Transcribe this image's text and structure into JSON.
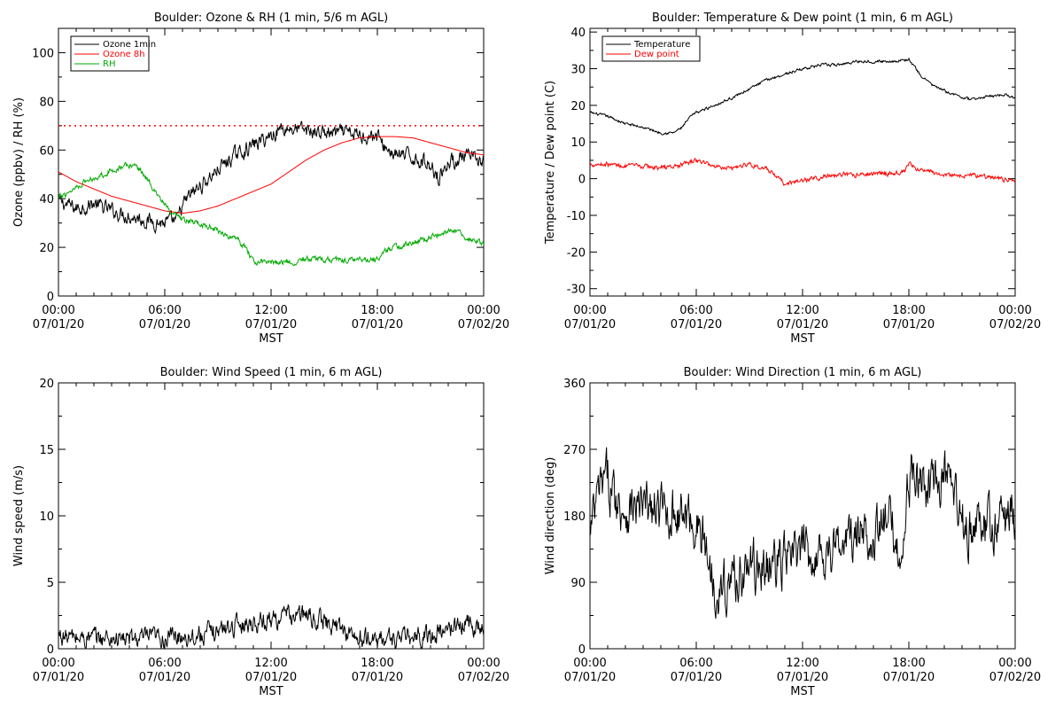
{
  "chart_data": [
    {
      "type": "line",
      "title": "Boulder: Ozone & RH (1 min, 5/6 m AGL)",
      "xlabel": "MST",
      "ylabel": "Ozone (ppbv) / RH (%)",
      "xlim": [
        0,
        24
      ],
      "ylim": [
        0,
        110
      ],
      "yticks": [
        0,
        20,
        40,
        60,
        80,
        100
      ],
      "xtick_labels": [
        [
          "00:00",
          "07/01/20"
        ],
        [
          "06:00",
          "07/01/20"
        ],
        [
          "12:00",
          "07/01/20"
        ],
        [
          "18:00",
          "07/01/20"
        ],
        [
          "00:00",
          "07/02/20"
        ]
      ],
      "legend": "top-left",
      "reference_line": {
        "y": 70,
        "color": "#ff0000",
        "style": "dotted"
      },
      "series": [
        {
          "name": "Ozone 1min",
          "color": "#000000",
          "noise": 2.5,
          "points": [
            [
              0,
              39
            ],
            [
              1,
              36
            ],
            [
              2,
              38
            ],
            [
              3,
              35
            ],
            [
              4,
              33
            ],
            [
              5,
              31
            ],
            [
              6,
              30
            ],
            [
              6.7,
              31
            ],
            [
              7,
              37
            ],
            [
              7.5,
              42
            ],
            [
              8,
              45
            ],
            [
              9,
              52
            ],
            [
              10,
              58
            ],
            [
              11,
              62
            ],
            [
              12,
              66
            ],
            [
              12.5,
              69
            ],
            [
              13,
              69
            ],
            [
              14,
              68
            ],
            [
              15,
              67
            ],
            [
              16,
              67
            ],
            [
              17,
              66
            ],
            [
              18,
              66
            ],
            [
              18.3,
              62
            ],
            [
              19,
              58
            ],
            [
              20,
              57
            ],
            [
              21,
              54
            ],
            [
              21.5,
              49
            ],
            [
              22,
              55
            ],
            [
              23,
              57
            ],
            [
              24,
              55
            ]
          ]
        },
        {
          "name": "Ozone 8h",
          "color": "#ff0000",
          "noise": 0,
          "points": [
            [
              0,
              51
            ],
            [
              1,
              47
            ],
            [
              2,
              44
            ],
            [
              3,
              41
            ],
            [
              4,
              39
            ],
            [
              5,
              37
            ],
            [
              6,
              35
            ],
            [
              7,
              34
            ],
            [
              8,
              35
            ],
            [
              9,
              37
            ],
            [
              10,
              40
            ],
            [
              11,
              43
            ],
            [
              12,
              46
            ],
            [
              13,
              51
            ],
            [
              14,
              56
            ],
            [
              15,
              60
            ],
            [
              16,
              63
            ],
            [
              17,
              65
            ],
            [
              18,
              65.5
            ],
            [
              19,
              65.5
            ],
            [
              20,
              65
            ],
            [
              21,
              63
            ],
            [
              22,
              61
            ],
            [
              23,
              59
            ],
            [
              24,
              58
            ]
          ]
        },
        {
          "name": "RH",
          "color": "#00aa00",
          "noise": 1.0,
          "points": [
            [
              0,
              40
            ],
            [
              0.8,
              44
            ],
            [
              1.5,
              47
            ],
            [
              2.5,
              50
            ],
            [
              3.5,
              53
            ],
            [
              4.3,
              54
            ],
            [
              4.8,
              50
            ],
            [
              5.5,
              43
            ],
            [
              6.3,
              34
            ],
            [
              7,
              31
            ],
            [
              8,
              30
            ],
            [
              9,
              27
            ],
            [
              10,
              23
            ],
            [
              10.6,
              20
            ],
            [
              11,
              14
            ],
            [
              12,
              14
            ],
            [
              13,
              14
            ],
            [
              14,
              15
            ],
            [
              15,
              15
            ],
            [
              16,
              15
            ],
            [
              17,
              15
            ],
            [
              18,
              15
            ],
            [
              18.3,
              17
            ],
            [
              18.5,
              19
            ],
            [
              19,
              20
            ],
            [
              20,
              22
            ],
            [
              21,
              24
            ],
            [
              21.8,
              26
            ],
            [
              22.3,
              27
            ],
            [
              23,
              24
            ],
            [
              24,
              21
            ]
          ]
        }
      ]
    },
    {
      "type": "line",
      "title": "Boulder: Temperature & Dew point (1 min, 6 m AGL)",
      "xlabel": "MST",
      "ylabel": "Temperature / Dew point (C)",
      "xlim": [
        0,
        24
      ],
      "ylim": [
        -32,
        41
      ],
      "yticks": [
        -30,
        -20,
        -10,
        0,
        10,
        20,
        30,
        40
      ],
      "xtick_labels": [
        [
          "00:00",
          "07/01/20"
        ],
        [
          "06:00",
          "07/01/20"
        ],
        [
          "12:00",
          "07/01/20"
        ],
        [
          "18:00",
          "07/01/20"
        ],
        [
          "00:00",
          "07/02/20"
        ]
      ],
      "legend": "top-left",
      "series": [
        {
          "name": "Temperature",
          "color": "#000000",
          "noise": 0.3,
          "points": [
            [
              0,
              18
            ],
            [
              1,
              17
            ],
            [
              2,
              15
            ],
            [
              3,
              14
            ],
            [
              4,
              12.5
            ],
            [
              4.7,
              12.5
            ],
            [
              5.2,
              14
            ],
            [
              5.7,
              17
            ],
            [
              6,
              18
            ],
            [
              7,
              20
            ],
            [
              8,
              22
            ],
            [
              9,
              24.5
            ],
            [
              10,
              27
            ],
            [
              11,
              28.5
            ],
            [
              12,
              30
            ],
            [
              13,
              31
            ],
            [
              14,
              31
            ],
            [
              15,
              32
            ],
            [
              16,
              32
            ],
            [
              17,
              32
            ],
            [
              18,
              32.5
            ],
            [
              18.7,
              28
            ],
            [
              19.5,
              25
            ],
            [
              20.5,
              23
            ],
            [
              21.5,
              21.5
            ],
            [
              22.5,
              22.5
            ],
            [
              23.5,
              23
            ],
            [
              24,
              22
            ]
          ]
        },
        {
          "name": "Dew point",
          "color": "#ff0000",
          "noise": 0.5,
          "points": [
            [
              0,
              4
            ],
            [
              1,
              4
            ],
            [
              2,
              3.5
            ],
            [
              3,
              3.3
            ],
            [
              4,
              3
            ],
            [
              5,
              3.5
            ],
            [
              6,
              5
            ],
            [
              7,
              3.5
            ],
            [
              8,
              3
            ],
            [
              9,
              4
            ],
            [
              10,
              2.5
            ],
            [
              11,
              -1.5
            ],
            [
              12,
              -0.5
            ],
            [
              13,
              0.5
            ],
            [
              14,
              1
            ],
            [
              15,
              1
            ],
            [
              16,
              1.5
            ],
            [
              17,
              1.5
            ],
            [
              17.8,
              2
            ],
            [
              18,
              4
            ],
            [
              18.5,
              2.5
            ],
            [
              19.5,
              1.5
            ],
            [
              20.5,
              1
            ],
            [
              21.5,
              1
            ],
            [
              22.5,
              0.5
            ],
            [
              23,
              0
            ],
            [
              24,
              -0.5
            ]
          ]
        }
      ]
    },
    {
      "type": "line",
      "title": "Boulder: Wind Speed (1 min, 6 m AGL)",
      "xlabel": "MST",
      "ylabel": "Wind speed (m/s)",
      "xlim": [
        0,
        24
      ],
      "ylim": [
        0,
        20
      ],
      "yticks": [
        0,
        5,
        10,
        15,
        20
      ],
      "xtick_labels": [
        [
          "00:00",
          "07/01/20"
        ],
        [
          "06:00",
          "07/01/20"
        ],
        [
          "12:00",
          "07/01/20"
        ],
        [
          "18:00",
          "07/01/20"
        ],
        [
          "00:00",
          "07/02/20"
        ]
      ],
      "series": [
        {
          "name": "",
          "color": "#000000",
          "noise": 0.6,
          "points": [
            [
              0,
              1
            ],
            [
              1,
              0.8
            ],
            [
              2,
              0.8
            ],
            [
              3,
              0.8
            ],
            [
              4,
              0.7
            ],
            [
              5,
              0.8
            ],
            [
              6,
              0.8
            ],
            [
              7,
              1
            ],
            [
              8,
              1
            ],
            [
              9,
              1.4
            ],
            [
              10,
              1.8
            ],
            [
              11,
              2
            ],
            [
              12,
              2.2
            ],
            [
              13,
              2.5
            ],
            [
              14,
              2.5
            ],
            [
              15,
              2
            ],
            [
              16,
              1.5
            ],
            [
              17,
              0.7
            ],
            [
              18,
              0.7
            ],
            [
              19,
              0.8
            ],
            [
              20,
              0.8
            ],
            [
              21,
              1
            ],
            [
              22,
              1.5
            ],
            [
              23,
              2
            ],
            [
              24,
              1.5
            ]
          ]
        }
      ]
    },
    {
      "type": "line",
      "title": "Boulder: Wind Direction (1 min, 6 m AGL)",
      "xlabel": "MST",
      "ylabel": "Wind direction (deg)",
      "xlim": [
        0,
        24
      ],
      "ylim": [
        0,
        360
      ],
      "yticks": [
        0,
        90,
        180,
        270,
        360
      ],
      "xtick_labels": [
        [
          "00:00",
          "07/01/20"
        ],
        [
          "06:00",
          "07/01/20"
        ],
        [
          "12:00",
          "07/01/20"
        ],
        [
          "18:00",
          "07/01/20"
        ],
        [
          "00:00",
          "07/02/20"
        ]
      ],
      "series": [
        {
          "name": "",
          "color": "#000000",
          "noise": 28,
          "points": [
            [
              0,
              150
            ],
            [
              0.5,
              210
            ],
            [
              1,
              230
            ],
            [
              1.5,
              200
            ],
            [
              2,
              190
            ],
            [
              3,
              190
            ],
            [
              4,
              185
            ],
            [
              5,
              185
            ],
            [
              6,
              170
            ],
            [
              6.5,
              140
            ],
            [
              7,
              90
            ],
            [
              7.5,
              80
            ],
            [
              8,
              95
            ],
            [
              9,
              110
            ],
            [
              10,
              110
            ],
            [
              11,
              120
            ],
            [
              12,
              130
            ],
            [
              13,
              130
            ],
            [
              14,
              140
            ],
            [
              15,
              150
            ],
            [
              16,
              160
            ],
            [
              17,
              170
            ],
            [
              17.6,
              120
            ],
            [
              18,
              235
            ],
            [
              19,
              220
            ],
            [
              19.5,
              210
            ],
            [
              20,
              240
            ],
            [
              21,
              170
            ],
            [
              22,
              160
            ],
            [
              23,
              170
            ],
            [
              24,
              185
            ]
          ]
        }
      ]
    }
  ]
}
